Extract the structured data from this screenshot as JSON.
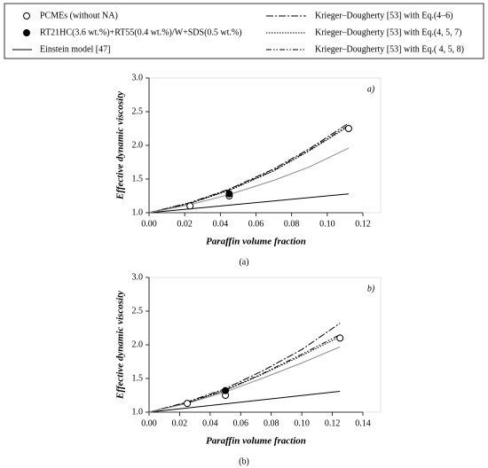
{
  "chart_data": [
    {
      "type": "line",
      "annotation": "a)",
      "caption": "(a)",
      "xlabel": "Paraffin volume fraction",
      "ylabel": "Effective dynamic viscosity",
      "xlim": [
        0,
        0.12
      ],
      "ylim": [
        1,
        3
      ],
      "xticks": [
        {
          "value": 0,
          "label": "0.00"
        },
        {
          "value": 0.02,
          "label": "0.02"
        },
        {
          "value": 0.04,
          "label": "0.04"
        },
        {
          "value": 0.06,
          "label": "0.06"
        },
        {
          "value": 0.08,
          "label": "0.08"
        },
        {
          "value": 0.1,
          "label": "0.10"
        },
        {
          "value": 0.12,
          "label": "0.12"
        }
      ],
      "yticks": [
        {
          "value": 1,
          "label": "1.0"
        },
        {
          "value": 1.5,
          "label": "1.5"
        },
        {
          "value": 2,
          "label": "2.0"
        },
        {
          "value": 2.5,
          "label": "2.5"
        },
        {
          "value": 3,
          "label": "3.0"
        }
      ],
      "series": [
        {
          "name": "PCMEs (without NA)",
          "style": "open-marker",
          "color": "#000000",
          "x": [
            0.023,
            0.045,
            0.112
          ],
          "values": [
            1.1,
            1.25,
            2.25
          ]
        },
        {
          "name": "RT21HC(3.6 wt.%)+RT55(0.4 wt.%)/W+SDS(0.5 wt.%)",
          "style": "filled-marker",
          "color": "#000000",
          "x": [
            0.045
          ],
          "values": [
            1.28
          ]
        },
        {
          "name": "Einstein model [47]",
          "style": "solid",
          "color": "#000000",
          "x": [
            0,
            0.112
          ],
          "values": [
            1,
            1.28
          ]
        },
        {
          "name": "Krieger–Dougherty [53] with Eq.(4–6)",
          "style": "dash-dot",
          "color": "#000000",
          "x": [
            0,
            0.023,
            0.045,
            0.07,
            0.09,
            0.112
          ],
          "values": [
            1,
            1.15,
            1.35,
            1.65,
            1.95,
            2.33
          ]
        },
        {
          "name": "Krieger–Dougherty [53] with Eq.(4, 5, 7)",
          "style": "dotted",
          "color": "#000000",
          "x": [
            0,
            0.023,
            0.045,
            0.07,
            0.09,
            0.112
          ],
          "values": [
            1,
            1.14,
            1.33,
            1.62,
            1.92,
            2.28
          ]
        },
        {
          "name": "Krieger–Dougherty [53] with Eq.( 4, 5, 8)",
          "style": "dash-dot-dot",
          "color": "#000000",
          "x": [
            0,
            0.023,
            0.045,
            0.07,
            0.09,
            0.112
          ],
          "values": [
            1,
            1.14,
            1.34,
            1.63,
            1.93,
            2.3
          ]
        },
        {
          "style": "solid",
          "color": "#8c8c8c",
          "x": [
            0,
            0.023,
            0.045,
            0.07,
            0.09,
            0.112
          ],
          "values": [
            1,
            1.12,
            1.27,
            1.48,
            1.68,
            1.96
          ]
        }
      ]
    },
    {
      "type": "line",
      "annotation": "b)",
      "caption": "(b)",
      "xlabel": "Paraffin volume fraction",
      "ylabel": "Effective dynamic viscosity",
      "xlim": [
        0,
        0.14
      ],
      "ylim": [
        1,
        3
      ],
      "xticks": [
        {
          "value": 0,
          "label": "0.00"
        },
        {
          "value": 0.02,
          "label": "0.02"
        },
        {
          "value": 0.04,
          "label": "0.04"
        },
        {
          "value": 0.06,
          "label": "0.06"
        },
        {
          "value": 0.08,
          "label": "0.08"
        },
        {
          "value": 0.1,
          "label": "0.10"
        },
        {
          "value": 0.12,
          "label": "0.12"
        },
        {
          "value": 0.14,
          "label": "0.14"
        }
      ],
      "yticks": [
        {
          "value": 1,
          "label": "1.0"
        },
        {
          "value": 1.5,
          "label": "1.5"
        },
        {
          "value": 2,
          "label": "2.0"
        },
        {
          "value": 2.5,
          "label": "2.5"
        },
        {
          "value": 3,
          "label": "3.0"
        }
      ],
      "series": [
        {
          "style": "open-marker",
          "color": "#000000",
          "x": [
            0.025,
            0.05,
            0.125
          ],
          "values": [
            1.13,
            1.25,
            2.1
          ]
        },
        {
          "style": "filled-marker",
          "color": "#000000",
          "x": [
            0.05
          ],
          "values": [
            1.32
          ]
        },
        {
          "style": "solid",
          "color": "#000000",
          "x": [
            0,
            0.125
          ],
          "values": [
            1,
            1.31
          ]
        },
        {
          "style": "dash-dot",
          "color": "#000000",
          "x": [
            0,
            0.025,
            0.05,
            0.075,
            0.1,
            0.125
          ],
          "values": [
            1,
            1.15,
            1.35,
            1.62,
            1.93,
            2.32
          ]
        },
        {
          "style": "dotted",
          "color": "#000000",
          "x": [
            0,
            0.025,
            0.05,
            0.075,
            0.1,
            0.125
          ],
          "values": [
            1,
            1.14,
            1.32,
            1.57,
            1.84,
            2.12
          ]
        },
        {
          "style": "dash-dot-dot",
          "color": "#000000",
          "x": [
            0,
            0.025,
            0.05,
            0.075,
            0.1,
            0.125
          ],
          "values": [
            1,
            1.14,
            1.33,
            1.58,
            1.86,
            2.15
          ]
        },
        {
          "style": "solid",
          "color": "#8c8c8c",
          "x": [
            0,
            0.025,
            0.05,
            0.075,
            0.1,
            0.125
          ],
          "values": [
            1,
            1.13,
            1.3,
            1.51,
            1.73,
            1.97
          ]
        }
      ]
    }
  ]
}
